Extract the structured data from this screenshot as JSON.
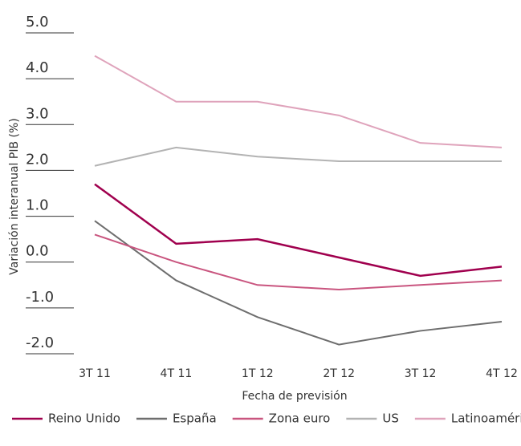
{
  "chart_data": {
    "type": "line",
    "x_label": "Fecha de previsión",
    "y_label": "Variación interanual PIB (%)",
    "categories": [
      "3T 11",
      "4T 11",
      "1T 12",
      "2T 12",
      "3T 12",
      "4T 12"
    ],
    "series": [
      {
        "name": "Reino Unido",
        "color": "#a0004e",
        "values": [
          1.7,
          0.4,
          0.5,
          0.1,
          -0.3,
          -0.1
        ]
      },
      {
        "name": "España",
        "color": "#6e6e6e",
        "values": [
          0.9,
          -0.4,
          -1.2,
          -1.8,
          -1.5,
          -1.3
        ]
      },
      {
        "name": "Zona euro",
        "color": "#c9557f",
        "values": [
          0.6,
          0.0,
          -0.5,
          -0.6,
          -0.5,
          -0.4
        ]
      },
      {
        "name": "US",
        "color": "#b3b3b3",
        "values": [
          2.1,
          2.5,
          2.3,
          2.2,
          2.2,
          2.2
        ]
      },
      {
        "name": "Latinoamérica",
        "color": "#dfa3bb",
        "values": [
          4.5,
          3.5,
          3.5,
          3.2,
          2.6,
          2.5
        ]
      }
    ],
    "ylim": [
      -2,
      5
    ],
    "yticks": [
      {
        "value": 5,
        "label": "5.0"
      },
      {
        "value": 4,
        "label": "4.0"
      },
      {
        "value": 3,
        "label": "3.0"
      },
      {
        "value": 2,
        "label": "2.0"
      },
      {
        "value": 1,
        "label": "1.0"
      },
      {
        "value": 0,
        "label": "0.0"
      },
      {
        "value": -1,
        "label": "-1.0"
      },
      {
        "value": -2,
        "label": "-2.0"
      }
    ],
    "legend": "bottom"
  }
}
